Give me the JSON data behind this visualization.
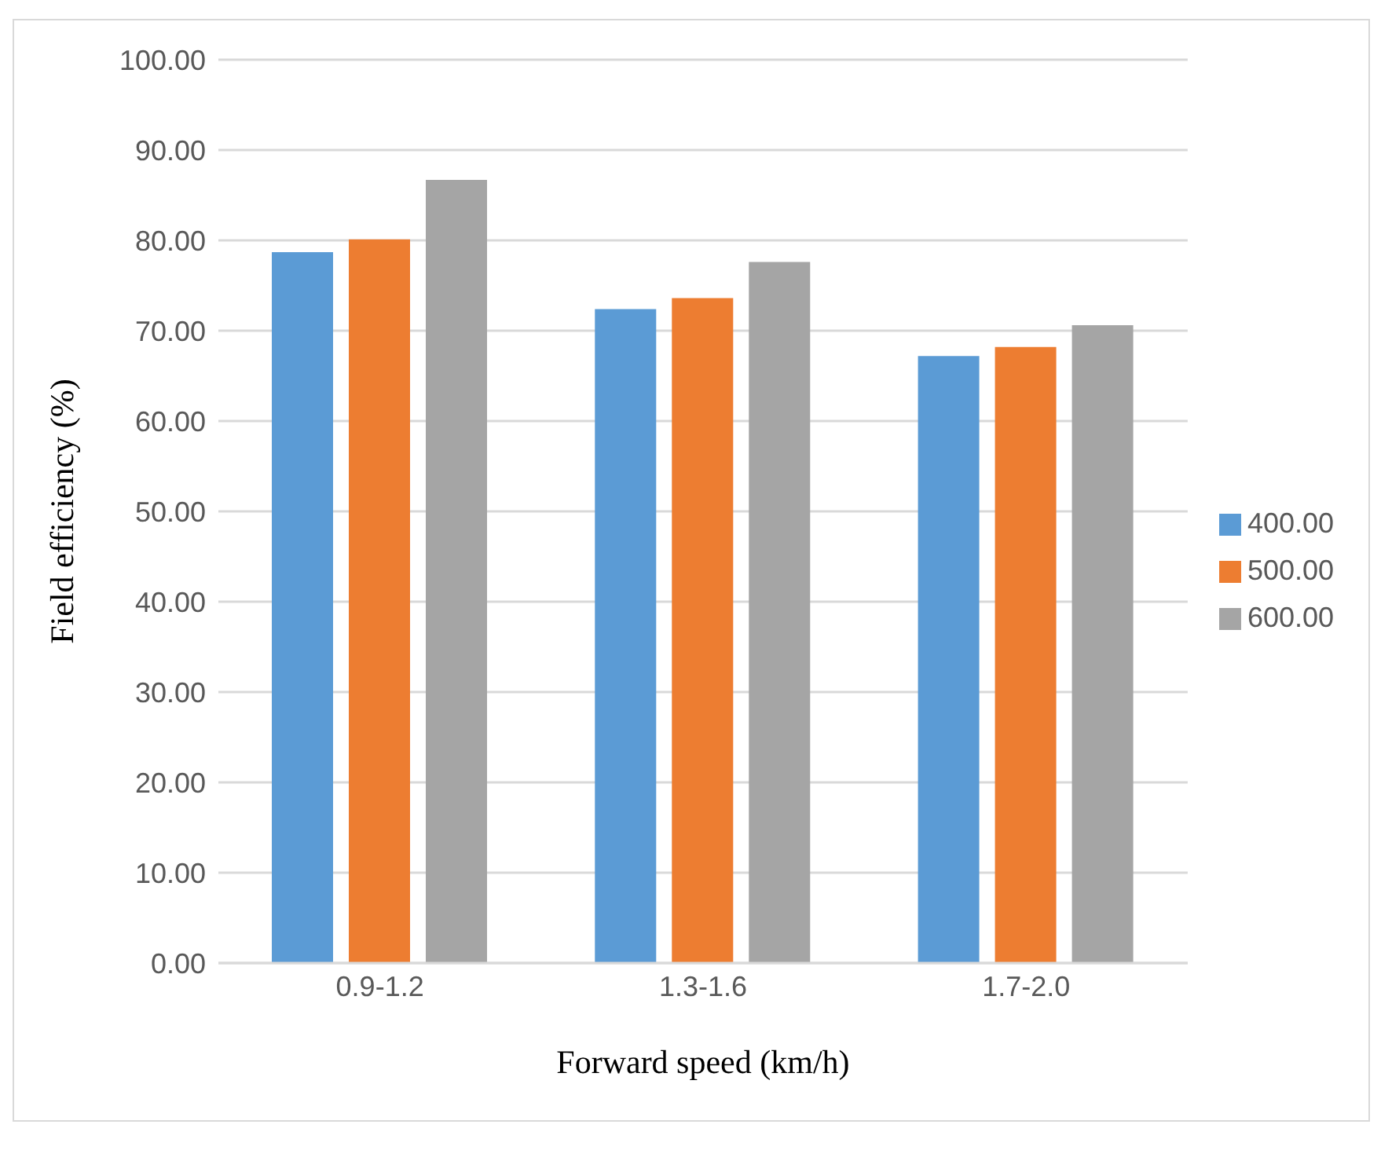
{
  "chart_data": {
    "type": "bar",
    "xlabel": "Forward speed (km/h)",
    "ylabel": "Field efficiency (%)",
    "categories": [
      "0.9-1.2",
      "1.3-1.6",
      "1.7-2.0"
    ],
    "series": [
      {
        "name": "400.00",
        "color": "#5b9bd5",
        "values": [
          78.7,
          72.4,
          67.2
        ]
      },
      {
        "name": "500.00",
        "color": "#ed7d31",
        "values": [
          80.1,
          73.6,
          68.2
        ]
      },
      {
        "name": "600.00",
        "color": "#a5a5a5",
        "values": [
          86.7,
          77.6,
          70.6
        ]
      }
    ],
    "ylim": [
      0,
      100
    ],
    "yticks": [
      {
        "value": 0,
        "label": "0.00"
      },
      {
        "value": 10,
        "label": "10.00"
      },
      {
        "value": 20,
        "label": "20.00"
      },
      {
        "value": 30,
        "label": "30.00"
      },
      {
        "value": 40,
        "label": "40.00"
      },
      {
        "value": 50,
        "label": "50.00"
      },
      {
        "value": 60,
        "label": "60.00"
      },
      {
        "value": 70,
        "label": "70.00"
      },
      {
        "value": 80,
        "label": "80.00"
      },
      {
        "value": 90,
        "label": "90.00"
      },
      {
        "value": 100,
        "label": "100.00"
      }
    ],
    "grid": "y",
    "legend": "right"
  }
}
